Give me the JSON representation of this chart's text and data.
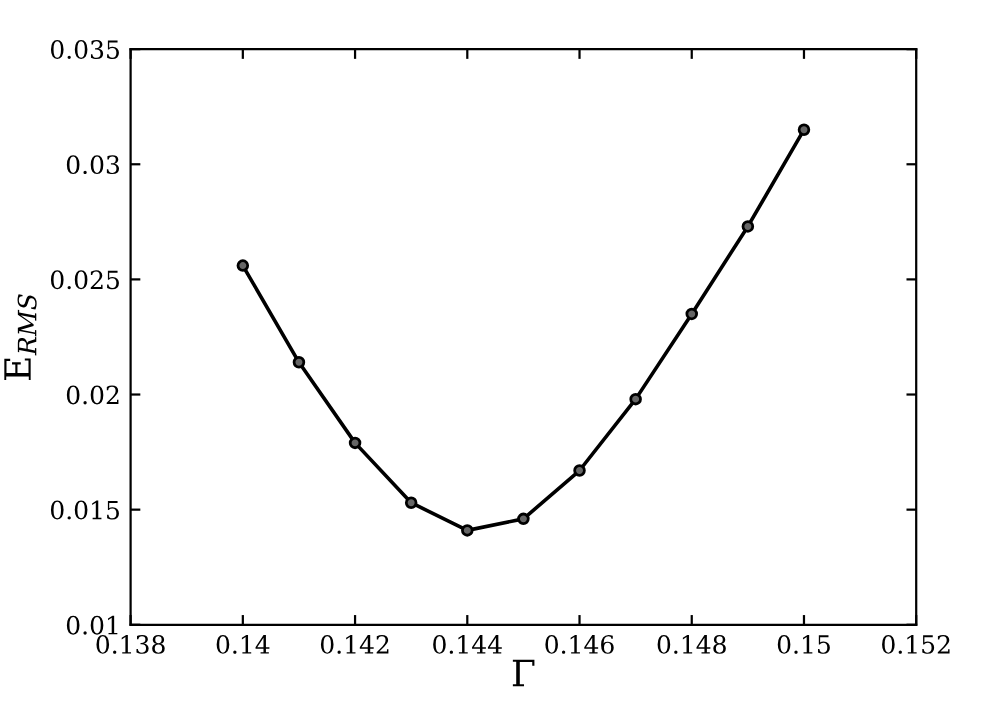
{
  "chart_data": {
    "type": "line",
    "xlabel": "Γ",
    "ylabel": "E$_{RMS}$",
    "x": [
      0.14,
      0.141,
      0.142,
      0.143,
      0.144,
      0.145,
      0.146,
      0.147,
      0.148,
      0.149,
      0.15
    ],
    "series": [
      {
        "color": "#000000",
        "values": [
          0.0256,
          0.0214,
          0.0179,
          0.0153,
          0.0141,
          0.0146,
          0.0167,
          0.0198,
          0.0235,
          0.0273,
          0.0315
        ]
      }
    ],
    "xlim": [
      0.138,
      0.152
    ],
    "xticks": [
      0.138,
      0.14,
      0.142,
      0.144,
      0.146,
      0.148,
      0.15,
      0.152
    ],
    "ylim": [
      0.01,
      0.035
    ],
    "yticks": [
      0.01,
      0.015,
      0.02,
      0.025,
      0.03,
      0.035
    ],
    "marker": "circle",
    "line_style": "solid",
    "grid": false,
    "legend": false
  }
}
